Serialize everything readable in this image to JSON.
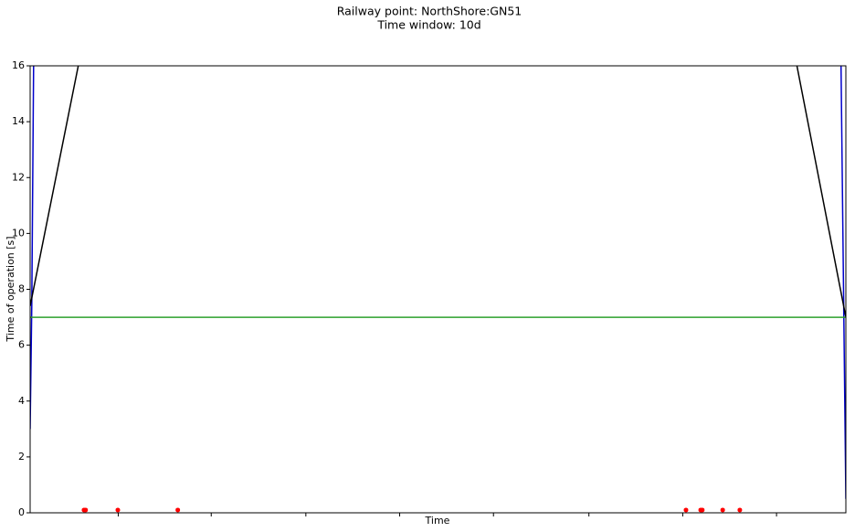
{
  "chart_data": {
    "type": "line",
    "title": "Railway point: NorthShore:GN51",
    "subtitle": "Time window: 10d",
    "xlabel": "Time",
    "ylabel": "Time of operation [s]",
    "xlim": [
      0,
      10
    ],
    "ylim": [
      0,
      16
    ],
    "xticks": [
      1.08,
      2.22,
      3.38,
      4.53,
      5.68,
      6.85,
      8.0,
      9.15
    ],
    "yticks": [
      0,
      2,
      4,
      6,
      8,
      10,
      12,
      14,
      16
    ],
    "grid": false,
    "series": [
      {
        "color": "#0000cc",
        "style": "line",
        "x": [
          0,
          0.02,
          0.045,
          null,
          9.94,
          10.0
        ],
        "values": [
          3,
          7.4,
          17,
          null,
          16.2,
          0.5
        ]
      },
      {
        "color": "#000000",
        "style": "line",
        "x": [
          0,
          0.59,
          null,
          9.4,
          10.0
        ],
        "values": [
          7.4,
          16,
          null,
          16,
          7.0
        ]
      },
      {
        "color": "#2ca02c",
        "style": "line",
        "x": [
          0,
          10
        ],
        "values": [
          7,
          7
        ]
      },
      {
        "color": "#ff0000",
        "style": "scatter",
        "x": [
          0.66,
          0.68,
          1.075,
          1.81,
          8.04,
          8.22,
          8.24,
          8.49,
          8.7
        ],
        "values": [
          0.1,
          0.1,
          0.1,
          0.1,
          0.1,
          0.1,
          0.1,
          0.1,
          0.1
        ]
      }
    ]
  }
}
